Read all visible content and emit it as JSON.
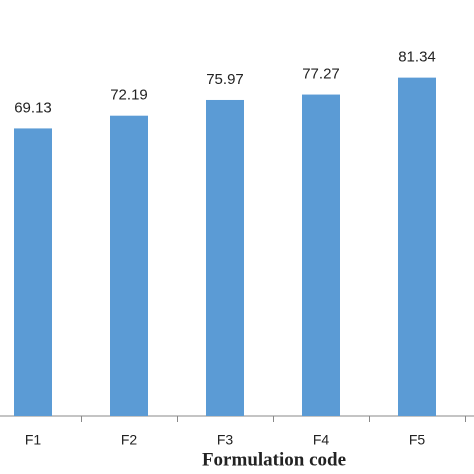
{
  "chart_data": {
    "type": "bar",
    "x_label": "Formulation code",
    "categories": [
      "F1",
      "F2",
      "F3",
      "F4",
      "F5"
    ],
    "values": [
      69.13,
      72.19,
      75.97,
      77.27,
      81.34
    ],
    "color": "#5b9bd5",
    "ylim": [
      0,
      100
    ]
  }
}
